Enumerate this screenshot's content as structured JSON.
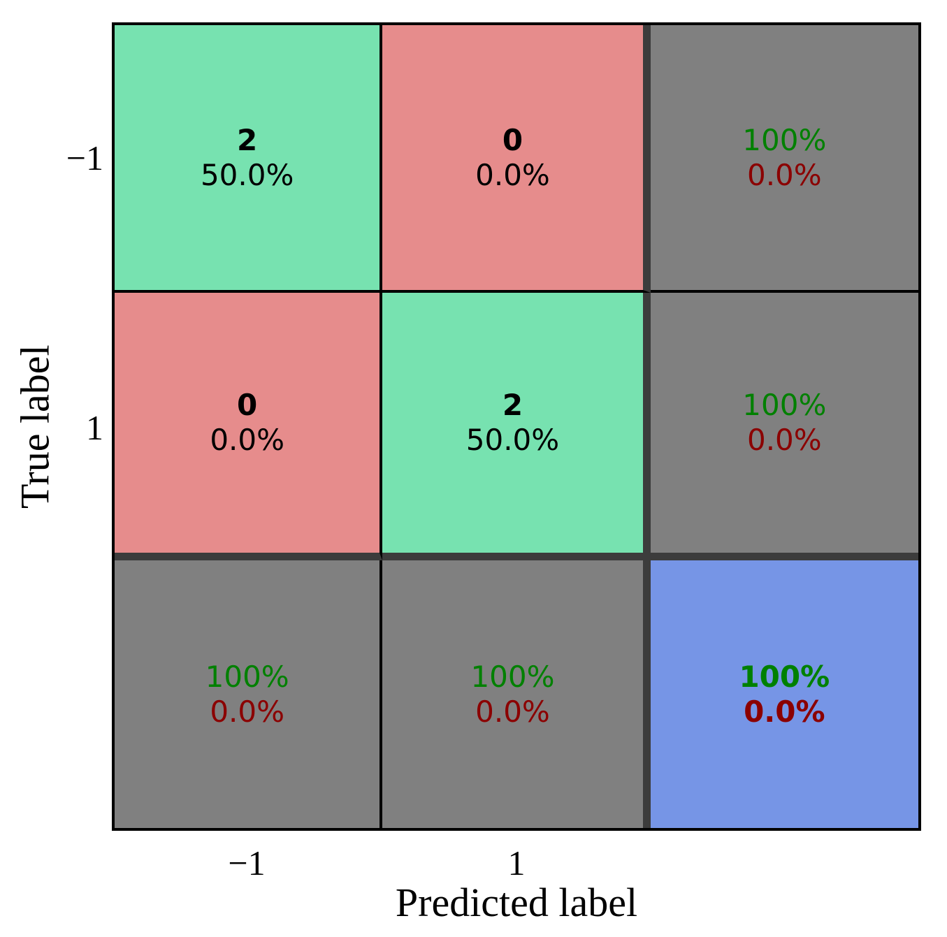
{
  "colors": {
    "correct_bg": "#77e2b0",
    "wrong_bg": "#e68c8c",
    "summary_bg": "#808080",
    "total_bg": "#7695e6",
    "good_text": "#008000",
    "bad_text": "#8b0000",
    "thin_grid_line": "#000000",
    "summary_divider": "#3c3c3c"
  },
  "chart_data": {
    "type": "heatmap",
    "subtype": "confusion-matrix",
    "title": "",
    "xlabel": "Predicted label",
    "ylabel": "True label",
    "x_tick_labels": [
      "−1",
      "1"
    ],
    "y_tick_labels": [
      "−1",
      "1"
    ],
    "classes": [
      "−1",
      "1"
    ],
    "counts": [
      [
        2,
        0
      ],
      [
        0,
        2
      ]
    ],
    "percent_of_total": [
      [
        "50.0%",
        "0.0%"
      ],
      [
        "0.0%",
        "50.0%"
      ]
    ],
    "row_summary": [
      {
        "good": "100%",
        "bad": "0.0%"
      },
      {
        "good": "100%",
        "bad": "0.0%"
      }
    ],
    "col_summary": [
      {
        "good": "100%",
        "bad": "0.0%"
      },
      {
        "good": "100%",
        "bad": "0.0%"
      }
    ],
    "overall": {
      "good": "100%",
      "bad": "0.0%"
    },
    "grid": {
      "r0c0": {
        "line1": "2",
        "line2": "50.0%"
      },
      "r0c1": {
        "line1": "0",
        "line2": "0.0%"
      },
      "r0c2": {
        "line1": "100%",
        "line2": "0.0%"
      },
      "r1c0": {
        "line1": "0",
        "line2": "0.0%"
      },
      "r1c1": {
        "line1": "2",
        "line2": "50.0%"
      },
      "r1c2": {
        "line1": "100%",
        "line2": "0.0%"
      },
      "r2c0": {
        "line1": "100%",
        "line2": "0.0%"
      },
      "r2c1": {
        "line1": "100%",
        "line2": "0.0%"
      },
      "r2c2": {
        "line1": "100%",
        "line2": "0.0%"
      }
    },
    "layout": {
      "grid_on": false,
      "legend": "none",
      "summary_row_col": true
    }
  }
}
